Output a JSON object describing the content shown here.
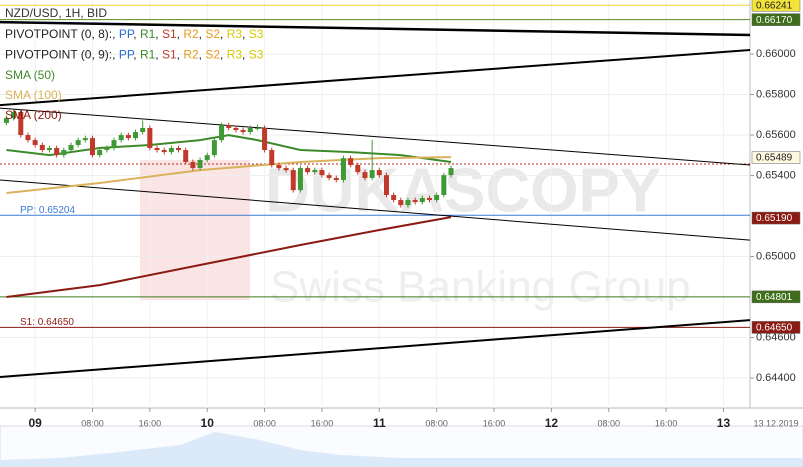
{
  "chart_data": {
    "type": "candlestick",
    "title": "NZD/USD, 1H, BID",
    "xlim": [
      -4.9,
      99.7
    ],
    "xticks": [
      {
        "value": 0,
        "label": "09"
      },
      {
        "value": 8,
        "label": "08:00"
      },
      {
        "value": 16,
        "label": "16:00"
      },
      {
        "value": 24,
        "label": "10"
      },
      {
        "value": 32,
        "label": "08:00"
      },
      {
        "value": 40,
        "label": "16:00"
      },
      {
        "value": 48,
        "label": "11"
      },
      {
        "value": 56,
        "label": "08:00"
      },
      {
        "value": 64,
        "label": "16:00"
      },
      {
        "value": 72,
        "label": "12"
      },
      {
        "value": 80,
        "label": "08:00"
      },
      {
        "value": 88,
        "label": "16:00"
      },
      {
        "value": 96,
        "label": "13"
      }
    ],
    "date_label": "13.12.2019",
    "ylim": [
      0.64252,
      0.66267
    ],
    "yticks": [
      {
        "value": 0.66,
        "label": "0.66000"
      },
      {
        "value": 0.658,
        "label": "0.65800"
      },
      {
        "value": 0.656,
        "label": "0.65600"
      },
      {
        "value": 0.654,
        "label": "0.65400"
      },
      {
        "value": 0.65,
        "label": "0.65000"
      },
      {
        "value": 0.646,
        "label": "0.64600"
      },
      {
        "value": 0.644,
        "label": "0.64400"
      }
    ],
    "grid": true,
    "up_color": "#3f9a35",
    "down_color": "#c0392b",
    "x": [
      -4,
      -3,
      -2,
      -1,
      0,
      1,
      2,
      3,
      4,
      5,
      6,
      7,
      8,
      9,
      10,
      11,
      12,
      13,
      14,
      15,
      16,
      17,
      18,
      19,
      20,
      21,
      22,
      23,
      24,
      25,
      26,
      27,
      28,
      29,
      30,
      31,
      32,
      33,
      34,
      35,
      36,
      37,
      38,
      39,
      40,
      41,
      42,
      43,
      44,
      45,
      46,
      47,
      48,
      49,
      50,
      51,
      52,
      53,
      54,
      55,
      56,
      57,
      58
    ],
    "open": [
      0.6566,
      0.65684,
      0.65714,
      0.656,
      0.65575,
      0.65551,
      0.65526,
      0.65536,
      0.65501,
      0.65526,
      0.65551,
      0.65575,
      0.65585,
      0.65501,
      0.65526,
      0.65536,
      0.65575,
      0.656,
      0.65585,
      0.65615,
      0.65635,
      0.65536,
      0.65526,
      0.65516,
      0.65536,
      0.65526,
      0.65467,
      0.65437,
      0.65477,
      0.65501,
      0.65575,
      0.65649,
      0.65635,
      0.65625,
      0.65615,
      0.65635,
      0.65635,
      0.65526,
      0.65452,
      0.65437,
      0.65427,
      0.65328,
      0.65437,
      0.65417,
      0.65427,
      0.65402,
      0.65388,
      0.65378,
      0.65486,
      0.65452,
      0.65417,
      0.65388,
      0.65427,
      0.65402,
      0.65304,
      0.65279,
      0.65254,
      0.65279,
      0.65269,
      0.65289,
      0.65279,
      0.65304,
      0.65402
    ],
    "high": [
      0.65696,
      0.65726,
      0.65726,
      0.65612,
      0.65587,
      0.65563,
      0.65548,
      0.65548,
      0.65538,
      0.65563,
      0.65587,
      0.65597,
      0.65597,
      0.65538,
      0.65548,
      0.65587,
      0.65612,
      0.65612,
      0.65627,
      0.65672,
      0.65647,
      0.65548,
      0.65538,
      0.65548,
      0.65548,
      0.65538,
      0.65479,
      0.65489,
      0.65513,
      0.65587,
      0.65661,
      0.65661,
      0.65647,
      0.65637,
      0.65647,
      0.65652,
      0.65647,
      0.65538,
      0.65464,
      0.65449,
      0.65439,
      0.65449,
      0.65449,
      0.65439,
      0.65439,
      0.65414,
      0.654,
      0.65498,
      0.65498,
      0.65464,
      0.65429,
      0.65576,
      0.65439,
      0.65414,
      0.65316,
      0.65291,
      0.65291,
      0.65291,
      0.65301,
      0.65301,
      0.65316,
      0.65414,
      0.65449
    ],
    "low": [
      0.65648,
      0.65672,
      0.65588,
      0.65563,
      0.65539,
      0.65514,
      0.65514,
      0.65489,
      0.65489,
      0.65514,
      0.65539,
      0.65563,
      0.65489,
      0.65489,
      0.65514,
      0.65524,
      0.65563,
      0.65573,
      0.65573,
      0.65603,
      0.65524,
      0.65514,
      0.65504,
      0.65504,
      0.65514,
      0.65455,
      0.65425,
      0.65425,
      0.65465,
      0.65489,
      0.65563,
      0.65623,
      0.65613,
      0.65603,
      0.65603,
      0.65623,
      0.65514,
      0.6544,
      0.65425,
      0.65415,
      0.65316,
      0.65316,
      0.65405,
      0.65405,
      0.6539,
      0.65376,
      0.65366,
      0.65366,
      0.6544,
      0.65405,
      0.65376,
      0.65376,
      0.6539,
      0.65292,
      0.65267,
      0.65242,
      0.65242,
      0.65257,
      0.65257,
      0.65267,
      0.65267,
      0.65292,
      0.6539
    ],
    "close": [
      0.65684,
      0.65714,
      0.656,
      0.65575,
      0.65551,
      0.65526,
      0.65536,
      0.65501,
      0.65526,
      0.65551,
      0.65575,
      0.65585,
      0.65501,
      0.65526,
      0.65536,
      0.65575,
      0.656,
      0.65585,
      0.65615,
      0.65635,
      0.65536,
      0.65526,
      0.65516,
      0.65536,
      0.65526,
      0.65467,
      0.65437,
      0.65477,
      0.65501,
      0.65575,
      0.65649,
      0.65635,
      0.65625,
      0.65615,
      0.65635,
      0.65635,
      0.65526,
      0.65452,
      0.65437,
      0.65427,
      0.65328,
      0.65437,
      0.65417,
      0.65427,
      0.65402,
      0.65388,
      0.65378,
      0.65486,
      0.65452,
      0.65417,
      0.65388,
      0.65427,
      0.65402,
      0.65304,
      0.65279,
      0.65254,
      0.65279,
      0.65269,
      0.65289,
      0.65279,
      0.65304,
      0.65402,
      0.65437
    ],
    "series": [
      {
        "name": "SMA (50)",
        "color": "#3d8a2a",
        "x": [
          -4,
          2,
          9,
          16,
          23,
          27,
          31,
          37,
          44,
          51,
          58
        ],
        "values": [
          0.65526,
          0.65501,
          0.65536,
          0.65551,
          0.65575,
          0.656,
          0.65575,
          0.65526,
          0.65516,
          0.65501,
          0.65467
        ]
      },
      {
        "name": "SMA (100)",
        "color": "#d9b25a",
        "x": [
          -4,
          9,
          23,
          37,
          48,
          58
        ],
        "values": [
          0.65314,
          0.65363,
          0.65427,
          0.65467,
          0.65486,
          0.65491
        ]
      },
      {
        "name": "SMA (200)",
        "color": "#8b1a12",
        "x": [
          -4,
          9,
          23,
          37,
          48,
          58
        ],
        "values": [
          0.648,
          0.64859,
          0.64958,
          0.65057,
          0.65131,
          0.65195
        ]
      }
    ],
    "trendlines": [
      {
        "x": [
          -4.9,
          99.7
        ],
        "values": [
          0.66158,
          0.66094
        ],
        "width": 2.5
      },
      {
        "x": [
          -4.9,
          99.7
        ],
        "values": [
          0.65748,
          0.6602
        ],
        "width": 2
      },
      {
        "x": [
          -4.9,
          99.7
        ],
        "values": [
          0.65733,
          0.65452
        ],
        "width": 1
      },
      {
        "x": [
          -4.9,
          99.7
        ],
        "values": [
          0.65378,
          0.65081
        ],
        "width": 1
      },
      {
        "x": [
          -4.9,
          99.7
        ],
        "values": [
          0.64405,
          0.64686
        ],
        "width": 2
      }
    ],
    "current_price_line": {
      "value": 0.65457,
      "color": "#b22a1a"
    },
    "levels": [
      {
        "value": 0.66241,
        "color": "#e6d52a"
      },
      {
        "value": 0.6617,
        "color": "#5b8a2a"
      },
      {
        "value": 0.65204,
        "color": "#3a7ad6",
        "label": "PP: 0.65204"
      },
      {
        "value": 0.64801,
        "color": "#3f7a1e"
      },
      {
        "value": 0.6465,
        "color": "#8b1a12",
        "label": "S1: 0.64650"
      }
    ],
    "price_tags": [
      {
        "value": 0.66241,
        "label": "0.66241",
        "color": "#f2e23a",
        "text_color": "#222"
      },
      {
        "value": 0.6617,
        "label": "0.66170",
        "color": "#3f6e1a",
        "text_color": "#fff"
      },
      {
        "value": 0.65489,
        "label": "0.65489",
        "color": "#fff8e0",
        "text_color": "#222"
      },
      {
        "value": 0.6519,
        "label": "0.65190",
        "color": "#8b1a12",
        "text_color": "#fff"
      },
      {
        "value": 0.64801,
        "label": "0.64801",
        "color": "#3f6e1a",
        "text_color": "#fff"
      },
      {
        "value": 0.6465,
        "label": "0.64650",
        "color": "#8b1a12",
        "text_color": "#fff"
      }
    ],
    "pivot_legend": [
      {
        "label": "PIVOTPOINT (0, 8):",
        "items": [
          {
            "name": "PP",
            "color": "#2a6ad6"
          },
          {
            "name": "R1",
            "color": "#3a8a2a"
          },
          {
            "name": "S1",
            "color": "#c0392b"
          },
          {
            "name": "R2",
            "color": "#e89a1a"
          },
          {
            "name": "S2",
            "color": "#e89a1a"
          },
          {
            "name": "R3",
            "color": "#d8c800"
          },
          {
            "name": "S3",
            "color": "#d8c800"
          }
        ]
      },
      {
        "label": "PIVOTPOINT (0, 9):",
        "items": [
          {
            "name": "PP",
            "color": "#2a6ad6"
          },
          {
            "name": "R1",
            "color": "#3a8a2a"
          },
          {
            "name": "S1",
            "color": "#c0392b"
          },
          {
            "name": "R2",
            "color": "#e89a1a"
          },
          {
            "name": "S2",
            "color": "#e89a1a"
          },
          {
            "name": "R3",
            "color": "#d8c800"
          },
          {
            "name": "S3",
            "color": "#d8c800"
          }
        ]
      }
    ],
    "separator": ", ",
    "watermark": {
      "brand": "DUKASCOPY",
      "tagline": "Swiss Banking Group"
    }
  }
}
